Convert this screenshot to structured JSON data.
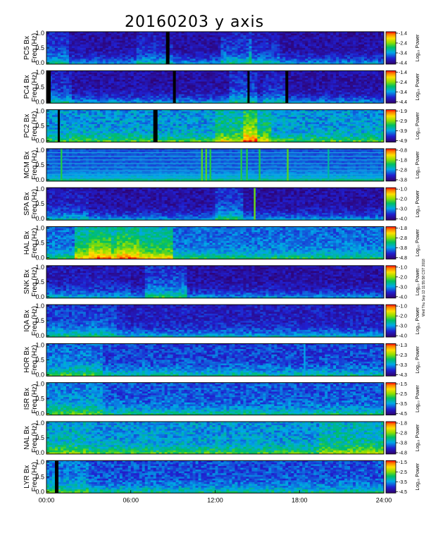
{
  "chart_data": {
    "type": "heatmap",
    "title": "20160203 y axis",
    "xlim_hours": [
      0,
      24
    ],
    "x_ticks": [
      "00:00",
      "06:00",
      "12:00",
      "18:00",
      "24:00"
    ],
    "colorbar_label": "Log₁₀ Power",
    "side_note": "Wed Thu Sep 13 11:55:58 CST 2018",
    "panels": [
      {
        "station": "PC5",
        "ylabel": "PC5 Bx\nFreq (Hz)",
        "y_ticks": [
          "1.0",
          "0.5",
          "0.0"
        ],
        "cbar_ticks": [
          "-1.4",
          "-2.4",
          "-3.4",
          "-4.4"
        ],
        "base_level": 0.1,
        "noise": 0.08,
        "bursts": [
          [
            0.1,
            1.5,
            0.15
          ],
          [
            6.5,
            9.0,
            0.1
          ],
          [
            12.5,
            14.5,
            0.15
          ],
          [
            14.5,
            16.5,
            0.1
          ]
        ],
        "gaps": [
          [
            8.5,
            8.75
          ]
        ],
        "lines": []
      },
      {
        "station": "PC4",
        "ylabel": "PC4 Bx\nFreq (Hz)",
        "y_ticks": [
          "1.0",
          "0.5",
          "0.0"
        ],
        "cbar_ticks": [
          "-1.4",
          "-2.4",
          "-3.4",
          "-4.4"
        ],
        "base_level": 0.1,
        "noise": 0.08,
        "bursts": [
          [
            0.1,
            1.8,
            0.12
          ],
          [
            13.0,
            15.0,
            0.15
          ],
          [
            15.5,
            17.0,
            0.1
          ]
        ],
        "gaps": [
          [
            0.0,
            0.3
          ],
          [
            9.0,
            9.2
          ],
          [
            14.3,
            14.45
          ],
          [
            17.0,
            17.2
          ]
        ],
        "lines": []
      },
      {
        "station": "PC2",
        "ylabel": "PC2 Bx\nFreq (Hz)",
        "y_ticks": [
          "1.0",
          "0.5",
          "0.0"
        ],
        "cbar_ticks": [
          "-1.9",
          "-2.9",
          "-3.9",
          "-4.9"
        ],
        "base_level": 0.34,
        "noise": 0.1,
        "bursts": [
          [
            12.0,
            16.0,
            0.18
          ],
          [
            14.0,
            15.0,
            0.22
          ]
        ],
        "gaps": [
          [
            0.8,
            0.95
          ],
          [
            7.6,
            7.9
          ]
        ],
        "lines": []
      },
      {
        "station": "MCM",
        "ylabel": "MCM Bx\nFreq (Hz)",
        "y_ticks": [
          "1.0",
          "0.5",
          "0.0"
        ],
        "cbar_ticks": [
          "-0.8",
          "-1.8",
          "-2.8",
          "-3.8"
        ],
        "base_level": 0.25,
        "noise": 0.04,
        "bursts": [],
        "gaps": [],
        "lines": [
          [
            1.0,
            0.55
          ],
          [
            11.0,
            0.6
          ],
          [
            11.3,
            0.6
          ],
          [
            11.6,
            0.55
          ],
          [
            13.8,
            0.55
          ],
          [
            14.2,
            0.55
          ],
          [
            15.1,
            0.55
          ],
          [
            17.1,
            0.6
          ],
          [
            20.0,
            0.45
          ]
        ]
      },
      {
        "station": "SPA",
        "ylabel": "SPA Bx\nFreq (Hz)",
        "y_ticks": [
          "1.0",
          "0.5",
          "0.0"
        ],
        "cbar_ticks": [
          "-1.0",
          "-2.0",
          "-3.0",
          "-4.0"
        ],
        "base_level": 0.1,
        "noise": 0.08,
        "bursts": [
          [
            12.0,
            14.0,
            0.18
          ],
          [
            0.1,
            3.0,
            0.08
          ]
        ],
        "gaps": [],
        "lines": [
          [
            14.75,
            0.62
          ]
        ]
      },
      {
        "station": "HAL",
        "ylabel": "HAL Bx\nFreq (Hz)",
        "y_ticks": [
          "1.0",
          "0.5",
          "0.0"
        ],
        "cbar_ticks": [
          "-1.8",
          "-2.8",
          "-3.8",
          "-4.8"
        ],
        "base_level": 0.28,
        "noise": 0.08,
        "bursts": [
          [
            2.0,
            9.0,
            0.3
          ],
          [
            3.0,
            4.5,
            0.12
          ],
          [
            5.0,
            6.5,
            0.12
          ]
        ],
        "gaps": [],
        "lines": []
      },
      {
        "station": "SNK",
        "ylabel": "SNK Bx\nFreq (Hz)",
        "y_ticks": [
          "1.0",
          "0.5",
          "0.0"
        ],
        "cbar_ticks": [
          "-1.0",
          "-2.0",
          "-3.0",
          "-4.0"
        ],
        "base_level": 0.1,
        "noise": 0.08,
        "bursts": [
          [
            7.0,
            10.0,
            0.2
          ],
          [
            0.1,
            6.0,
            0.06
          ]
        ],
        "gaps": [],
        "lines": []
      },
      {
        "station": "IQA",
        "ylabel": "IQA Bx\nFreq (Hz)",
        "y_ticks": [
          "1.0",
          "0.5",
          "0.0"
        ],
        "cbar_ticks": [
          "-1.0",
          "-2.0",
          "-3.0",
          "-4.0"
        ],
        "base_level": 0.15,
        "noise": 0.08,
        "bursts": [
          [
            0.0,
            5.0,
            0.12
          ]
        ],
        "gaps": [],
        "lines": []
      },
      {
        "station": "HOR",
        "ylabel": "HOR Bx\nFreq (Hz)",
        "y_ticks": [
          "1.0",
          "0.5",
          "0.0"
        ],
        "cbar_ticks": [
          "-1.3",
          "-2.3",
          "-3.3",
          "-4.3"
        ],
        "base_level": 0.22,
        "noise": 0.09,
        "bursts": [
          [
            0.0,
            4.0,
            0.12
          ]
        ],
        "gaps": [],
        "lines": [
          [
            18.3,
            0.35
          ]
        ]
      },
      {
        "station": "ISR",
        "ylabel": "ISR Bx\nFreq (Hz)",
        "y_ticks": [
          "1.0",
          "0.5",
          "0.0"
        ],
        "cbar_ticks": [
          "-1.5",
          "-2.5",
          "-3.5",
          "-4.5"
        ],
        "base_level": 0.25,
        "noise": 0.09,
        "bursts": [
          [
            0.0,
            4.0,
            0.12
          ]
        ],
        "gaps": [],
        "lines": []
      },
      {
        "station": "NAL",
        "ylabel": "NAL Bx\nFreq (Hz)",
        "y_ticks": [
          "1.0",
          "0.5",
          "0.0"
        ],
        "cbar_ticks": [
          "-1.8",
          "-2.8",
          "-3.8",
          "-4.8"
        ],
        "base_level": 0.34,
        "noise": 0.1,
        "bursts": [
          [
            19.5,
            24.0,
            0.12
          ],
          [
            0.0,
            3.0,
            0.08
          ]
        ],
        "gaps": [],
        "lines": []
      },
      {
        "station": "LYR",
        "ylabel": "LYR Bx\nFreq (Hz)",
        "y_ticks": [
          "1.0",
          "0.5",
          "0.0"
        ],
        "cbar_ticks": [
          "-1.5",
          "-2.5",
          "-3.5",
          "-4.5"
        ],
        "base_level": 0.24,
        "noise": 0.09,
        "bursts": [
          [
            0.0,
            3.0,
            0.1
          ]
        ],
        "gaps": [
          [
            0.6,
            0.85
          ]
        ],
        "lines": []
      }
    ]
  }
}
